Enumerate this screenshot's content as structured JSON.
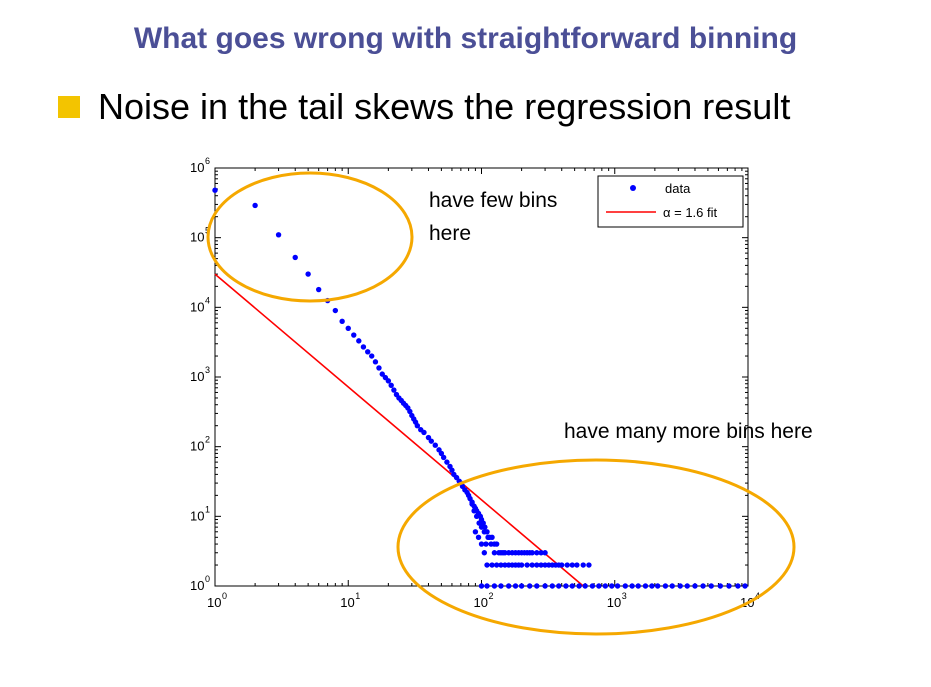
{
  "slide": {
    "title": "What goes wrong with straightforward binning",
    "bullet": "Noise in the tail skews the regression result",
    "annotation_left_line1": "have few bins",
    "annotation_left_line2": "here",
    "annotation_right": "have many more bins here"
  },
  "colors": {
    "title": "#4b4f96",
    "bullet": "#f3c400",
    "data": "#0000ff",
    "fit": "#ff0000",
    "ellipse": "#f5a800"
  },
  "chart_data": {
    "type": "scatter",
    "xscale": "log",
    "yscale": "log",
    "xlim": [
      1,
      10000
    ],
    "ylim": [
      1,
      1000000
    ],
    "xticks": [
      {
        "base": "10",
        "exp": "0"
      },
      {
        "base": "10",
        "exp": "1"
      },
      {
        "base": "10",
        "exp": "2"
      },
      {
        "base": "10",
        "exp": "3"
      },
      {
        "base": "10",
        "exp": "4"
      }
    ],
    "yticks": [
      {
        "base": "10",
        "exp": "0"
      },
      {
        "base": "10",
        "exp": "1"
      },
      {
        "base": "10",
        "exp": "2"
      },
      {
        "base": "10",
        "exp": "3"
      },
      {
        "base": "10",
        "exp": "4"
      },
      {
        "base": "10",
        "exp": "5"
      },
      {
        "base": "10",
        "exp": "6"
      }
    ],
    "legend": {
      "placement": "top-right",
      "data_label": "data",
      "fit_label": "α = 1.6 fit"
    },
    "fit": {
      "name": "α = 1.6 fit",
      "x": [
        1,
        580
      ],
      "y": [
        30000,
        1
      ]
    },
    "series": [
      {
        "name": "data",
        "points": [
          [
            1,
            480000
          ],
          [
            2,
            290000
          ],
          [
            3,
            110000
          ],
          [
            4,
            52000
          ],
          [
            5,
            30000
          ],
          [
            6,
            18000
          ],
          [
            7,
            12500
          ],
          [
            8,
            9000
          ],
          [
            9,
            6300
          ],
          [
            10,
            5000
          ],
          [
            11,
            4000
          ],
          [
            12,
            3300
          ],
          [
            13,
            2700
          ],
          [
            14,
            2300
          ],
          [
            15,
            2000
          ],
          [
            16,
            1650
          ],
          [
            17,
            1350
          ],
          [
            18,
            1100
          ],
          [
            19,
            980
          ],
          [
            20,
            880
          ],
          [
            21,
            760
          ],
          [
            22,
            650
          ],
          [
            23,
            560
          ],
          [
            24,
            500
          ],
          [
            25,
            460
          ],
          [
            26,
            420
          ],
          [
            27,
            390
          ],
          [
            28,
            360
          ],
          [
            29,
            320
          ],
          [
            30,
            280
          ],
          [
            31,
            250
          ],
          [
            32,
            225
          ],
          [
            33,
            200
          ],
          [
            35,
            175
          ],
          [
            37,
            160
          ],
          [
            40,
            135
          ],
          [
            42,
            120
          ],
          [
            45,
            105
          ],
          [
            48,
            90
          ],
          [
            50,
            80
          ],
          [
            52,
            70
          ],
          [
            55,
            60
          ],
          [
            58,
            52
          ],
          [
            60,
            46
          ],
          [
            62,
            40
          ],
          [
            65,
            36
          ],
          [
            68,
            32
          ],
          [
            70,
            30
          ],
          [
            72,
            27
          ],
          [
            75,
            24
          ],
          [
            78,
            22
          ],
          [
            80,
            20
          ],
          [
            82,
            18
          ],
          [
            85,
            16
          ],
          [
            88,
            14
          ],
          [
            90,
            13
          ],
          [
            92,
            12
          ],
          [
            95,
            11
          ],
          [
            98,
            10
          ],
          [
            100,
            9
          ],
          [
            103,
            8
          ],
          [
            106,
            7
          ],
          [
            110,
            6
          ],
          [
            115,
            5
          ],
          [
            120,
            5
          ],
          [
            125,
            4
          ],
          [
            130,
            4
          ],
          [
            135,
            3
          ],
          [
            140,
            3
          ],
          [
            145,
            3
          ],
          [
            150,
            3
          ],
          [
            160,
            3
          ],
          [
            170,
            3
          ],
          [
            180,
            3
          ],
          [
            190,
            3
          ],
          [
            200,
            3
          ],
          [
            210,
            3
          ],
          [
            220,
            3
          ],
          [
            230,
            3
          ],
          [
            240,
            3
          ],
          [
            260,
            3
          ],
          [
            280,
            3
          ],
          [
            300,
            3
          ],
          [
            110,
            2
          ],
          [
            120,
            2
          ],
          [
            130,
            2
          ],
          [
            140,
            2
          ],
          [
            150,
            2
          ],
          [
            160,
            2
          ],
          [
            170,
            2
          ],
          [
            180,
            2
          ],
          [
            190,
            2
          ],
          [
            200,
            2
          ],
          [
            220,
            2
          ],
          [
            240,
            2
          ],
          [
            260,
            2
          ],
          [
            280,
            2
          ],
          [
            300,
            2
          ],
          [
            320,
            2
          ],
          [
            340,
            2
          ],
          [
            360,
            2
          ],
          [
            380,
            2
          ],
          [
            400,
            2
          ],
          [
            440,
            2
          ],
          [
            480,
            2
          ],
          [
            520,
            2
          ],
          [
            580,
            2
          ],
          [
            640,
            2
          ],
          [
            85,
            15
          ],
          [
            88,
            12
          ],
          [
            92,
            10
          ],
          [
            96,
            8
          ],
          [
            100,
            7
          ],
          [
            105,
            6
          ],
          [
            112,
            5
          ],
          [
            118,
            4
          ],
          [
            125,
            3
          ],
          [
            90,
            6
          ],
          [
            95,
            5
          ],
          [
            100,
            4
          ],
          [
            105,
            3
          ],
          [
            108,
            4
          ],
          [
            100,
            1
          ],
          [
            110,
            1
          ],
          [
            125,
            1
          ],
          [
            140,
            1
          ],
          [
            160,
            1
          ],
          [
            180,
            1
          ],
          [
            200,
            1
          ],
          [
            230,
            1
          ],
          [
            260,
            1
          ],
          [
            300,
            1
          ],
          [
            340,
            1
          ],
          [
            380,
            1
          ],
          [
            430,
            1
          ],
          [
            480,
            1
          ],
          [
            540,
            1
          ],
          [
            600,
            1
          ],
          [
            680,
            1
          ],
          [
            760,
            1
          ],
          [
            850,
            1
          ],
          [
            950,
            1
          ],
          [
            1050,
            1
          ],
          [
            1200,
            1
          ],
          [
            1350,
            1
          ],
          [
            1500,
            1
          ],
          [
            1700,
            1
          ],
          [
            1900,
            1
          ],
          [
            2100,
            1
          ],
          [
            2400,
            1
          ],
          [
            2700,
            1
          ],
          [
            3100,
            1
          ],
          [
            3500,
            1
          ],
          [
            4000,
            1
          ],
          [
            4600,
            1
          ],
          [
            5300,
            1
          ],
          [
            6200,
            1
          ],
          [
            7200,
            1
          ],
          [
            8400,
            1
          ],
          [
            9500,
            1
          ]
        ]
      }
    ]
  }
}
